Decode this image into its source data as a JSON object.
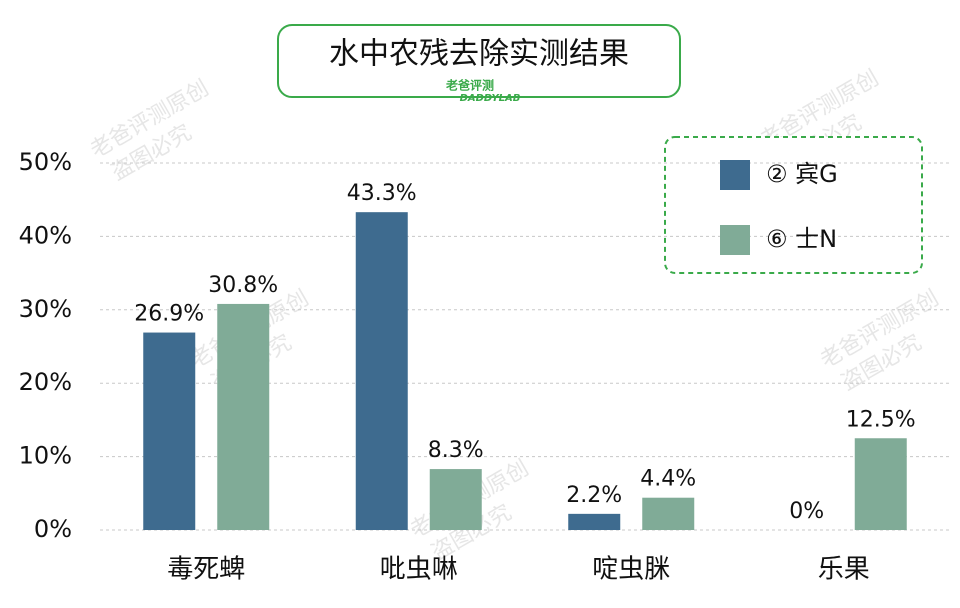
{
  "chart_data": {
    "type": "bar",
    "title": "水中农残去除实测结果",
    "logo_text": "老爸评测",
    "logo_subtext": "DADDYLAB",
    "watermark": [
      "老爸评测原创",
      "盗图必究"
    ],
    "categories": [
      "毒死蜱",
      "吡虫啉",
      "啶虫脒",
      "乐果"
    ],
    "series": [
      {
        "name": "② 宾G",
        "color": "#3e6b8f",
        "values": [
          26.9,
          43.3,
          2.2,
          0
        ],
        "value_labels": [
          "26.9%",
          "43.3%",
          "2.2%",
          "0%"
        ]
      },
      {
        "name": "⑥ 士N",
        "color": "#80ab97",
        "values": [
          30.8,
          8.3,
          4.4,
          12.5
        ],
        "value_labels": [
          "30.8%",
          "8.3%",
          "4.4%",
          "12.5%"
        ]
      }
    ],
    "ylim": [
      0,
      50
    ],
    "yticks": [
      {
        "value": 0,
        "label": "0%"
      },
      {
        "value": 10,
        "label": "10%"
      },
      {
        "value": 20,
        "label": "20%"
      },
      {
        "value": 30,
        "label": "30%"
      },
      {
        "value": 40,
        "label": "40%"
      },
      {
        "value": 50,
        "label": "50%"
      }
    ],
    "grid": true,
    "legend_position": "upper right"
  }
}
